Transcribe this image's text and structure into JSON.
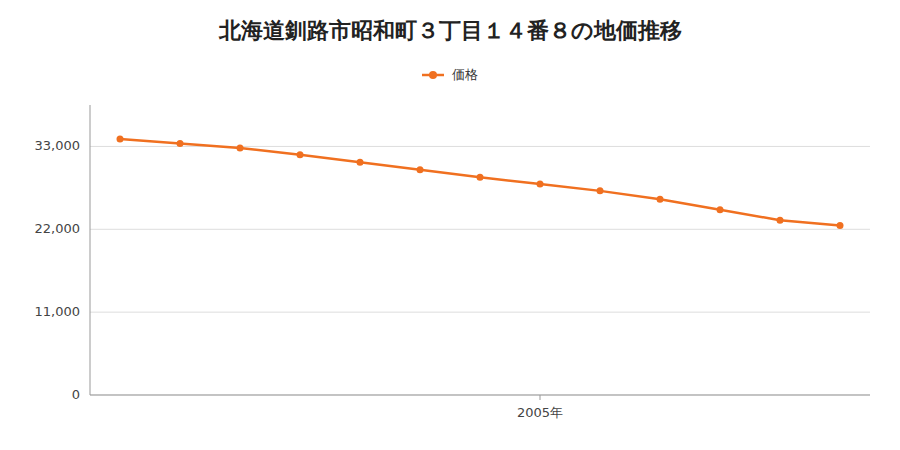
{
  "chart_data": {
    "type": "line",
    "title": "北海道釧路市昭和町３丁目１４番８の地価推移",
    "x": [
      1998,
      1999,
      2000,
      2001,
      2002,
      2003,
      2004,
      2005,
      2006,
      2007,
      2008,
      2009,
      2010
    ],
    "series": [
      {
        "name": "価格",
        "color": "#f07020",
        "marker": "circle",
        "values": [
          34000,
          33400,
          32800,
          31900,
          30900,
          29900,
          28900,
          28000,
          27100,
          26000,
          24600,
          23200,
          22500
        ]
      }
    ],
    "xlim": [
      1997.5,
      2010.5
    ],
    "xticks": [
      {
        "value": 2005,
        "label": "2005年"
      }
    ],
    "ylim": [
      0,
      38500
    ],
    "yticks": [
      {
        "value": 0,
        "label": "0"
      },
      {
        "value": 11000,
        "label": "11,000"
      },
      {
        "value": 22000,
        "label": "22,000"
      },
      {
        "value": 33000,
        "label": "33,000"
      }
    ],
    "grid": true,
    "legend": "top"
  }
}
